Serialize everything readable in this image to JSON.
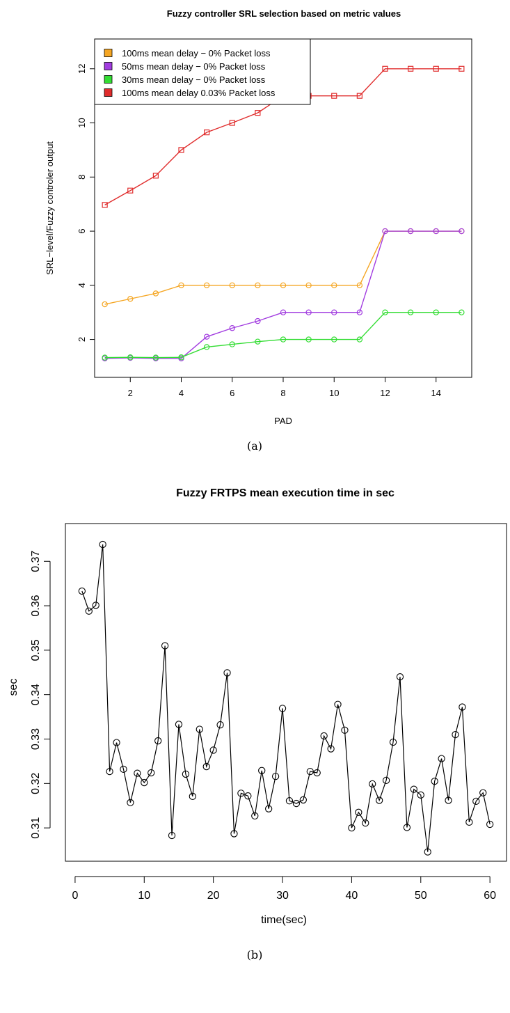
{
  "chart_data": [
    {
      "type": "line",
      "title": "Fuzzy controller SRL selection based on metric values",
      "xlabel": "PAD",
      "ylabel": "SRL−level/Fuzzy controler output",
      "caption": "(a)",
      "xlim": [
        0.6,
        15.4
      ],
      "ylim": [
        0.6,
        13.1
      ],
      "xticks": [
        2,
        4,
        6,
        8,
        10,
        12,
        14
      ],
      "xtick_labels": [
        "2",
        "4",
        "6",
        "8",
        "10",
        "12",
        "14"
      ],
      "yticks": [
        2,
        4,
        6,
        8,
        10,
        12
      ],
      "ytick_labels": [
        "2",
        "4",
        "6",
        "8",
        "10",
        "12"
      ],
      "grid": false,
      "legend_position": "top-left",
      "x": [
        1,
        2,
        3,
        4,
        5,
        6,
        7,
        8,
        9,
        10,
        11,
        12,
        13,
        14,
        15
      ],
      "series": [
        {
          "name": "100ms mean delay − 0% Packet loss",
          "color": "#f5a623",
          "marker": "circle",
          "values": [
            3.3,
            3.5,
            3.7,
            4.0,
            4.0,
            4.0,
            4.0,
            4.0,
            4.0,
            4.0,
            4.0,
            6.0,
            6.0,
            6.0,
            6.0
          ]
        },
        {
          "name": "50ms mean delay − 0% Packet loss",
          "color": "#a23de0",
          "marker": "circle",
          "values": [
            1.3,
            1.32,
            1.3,
            1.3,
            2.1,
            2.42,
            2.68,
            3.0,
            3.0,
            3.0,
            3.0,
            6.0,
            6.0,
            6.0,
            6.0
          ]
        },
        {
          "name": "30ms mean delay − 0% Packet loss",
          "color": "#33dd33",
          "marker": "circle",
          "values": [
            1.33,
            1.34,
            1.33,
            1.34,
            1.72,
            1.82,
            1.92,
            2.0,
            2.0,
            2.0,
            2.0,
            3.0,
            3.0,
            3.0,
            3.0
          ]
        },
        {
          "name": "100ms mean delay 0.03% Packet loss",
          "color": "#e02c2c",
          "marker": "square",
          "values": [
            6.97,
            7.5,
            8.05,
            9.0,
            9.65,
            10.0,
            10.37,
            11.0,
            11.0,
            11.0,
            11.0,
            12.0,
            12.0,
            12.0,
            12.0
          ]
        }
      ]
    },
    {
      "type": "line",
      "title": "Fuzzy FRTPS mean execution time in sec",
      "xlabel": "time(sec)",
      "ylabel": "sec",
      "caption": "(b)",
      "xlim": [
        -1.4,
        62.4
      ],
      "ylim": [
        0.3025,
        0.3785
      ],
      "xticks": [
        0,
        10,
        20,
        30,
        40,
        50,
        60
      ],
      "xtick_labels": [
        "0",
        "10",
        "20",
        "30",
        "40",
        "50",
        "60"
      ],
      "yticks": [
        0.31,
        0.32,
        0.33,
        0.34,
        0.35,
        0.36,
        0.37
      ],
      "ytick_labels": [
        "0.31",
        "0.32",
        "0.33",
        "0.34",
        "0.35",
        "0.36",
        "0.37"
      ],
      "grid": false,
      "color": "#000000",
      "marker": "circle",
      "x": [
        1,
        2,
        3,
        4,
        5,
        6,
        7,
        8,
        9,
        10,
        11,
        12,
        13,
        14,
        15,
        16,
        17,
        18,
        19,
        20,
        21,
        22,
        23,
        24,
        25,
        26,
        27,
        28,
        29,
        30,
        31,
        32,
        33,
        34,
        35,
        36,
        37,
        38,
        39,
        40,
        41,
        42,
        43,
        44,
        45,
        46,
        47,
        48,
        49,
        50,
        51,
        52,
        53,
        54,
        55,
        56,
        57,
        58,
        59,
        60
      ],
      "values": [
        0.3633,
        0.3588,
        0.3601,
        0.3738,
        0.3227,
        0.3292,
        0.3232,
        0.3157,
        0.3223,
        0.3202,
        0.3224,
        0.3296,
        0.351,
        0.3083,
        0.3333,
        0.3221,
        0.3171,
        0.3322,
        0.3238,
        0.3275,
        0.3332,
        0.3449,
        0.3087,
        0.3178,
        0.3172,
        0.3127,
        0.3229,
        0.3143,
        0.3216,
        0.3369,
        0.3161,
        0.3155,
        0.3163,
        0.3227,
        0.3224,
        0.3307,
        0.3278,
        0.3378,
        0.332,
        0.31,
        0.3135,
        0.3111,
        0.3199,
        0.3162,
        0.3207,
        0.3293,
        0.344,
        0.3101,
        0.3187,
        0.3174,
        0.3046,
        0.3205,
        0.3256,
        0.3162,
        0.331,
        0.3372,
        0.3113,
        0.316,
        0.3179,
        0.3108
      ]
    }
  ]
}
